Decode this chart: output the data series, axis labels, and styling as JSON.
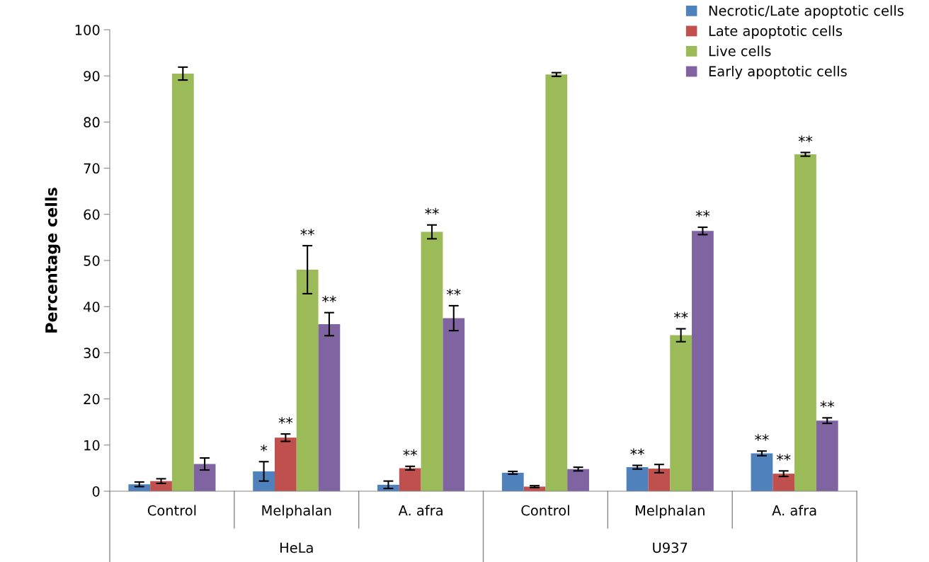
{
  "chart_data": {
    "type": "bar",
    "ylabel": "Percentage cells",
    "categories": [
      "Control",
      "Melphalan",
      "A. afra",
      "Control",
      "Melphalan",
      "A. afra"
    ],
    "annotations": [
      "HeLa",
      "U937"
    ],
    "series": [
      {
        "name": "Necrotic/Late apoptotic cells",
        "color": "#4f81bd",
        "values": [
          1.5,
          4.3,
          1.4,
          4.0,
          5.2,
          8.2
        ],
        "errors": [
          0.5,
          2.1,
          0.8,
          0.3,
          0.4,
          0.5
        ],
        "value_labels": [
          null,
          "*",
          null,
          null,
          "**",
          "**"
        ]
      },
      {
        "name": "Late apoptotic cells",
        "color": "#c0504d",
        "values": [
          2.2,
          11.6,
          5.0,
          1.0,
          4.9,
          3.8
        ],
        "errors": [
          0.5,
          0.8,
          0.4,
          0.2,
          0.9,
          0.6
        ],
        "value_labels": [
          null,
          "**",
          "**",
          null,
          null,
          "**"
        ]
      },
      {
        "name": "Live cells",
        "color": "#9bbb59",
        "values": [
          90.5,
          48.0,
          56.2,
          90.3,
          33.8,
          73.0
        ],
        "errors": [
          1.4,
          5.2,
          1.5,
          0.4,
          1.4,
          0.4
        ],
        "value_labels": [
          null,
          "**",
          "**",
          null,
          "**",
          "**"
        ]
      },
      {
        "name": "Early apoptotic cells",
        "color": "#8064a2",
        "values": [
          5.9,
          36.2,
          37.5,
          4.8,
          56.4,
          15.3
        ],
        "errors": [
          1.3,
          2.5,
          2.7,
          0.4,
          0.8,
          0.6
        ],
        "value_labels": [
          null,
          "**",
          "**",
          null,
          "**",
          "**"
        ]
      }
    ],
    "ylim": [
      0,
      100
    ],
    "yticks": [
      0,
      10,
      20,
      30,
      40,
      50,
      60,
      70,
      80,
      90,
      100
    ],
    "grid": false,
    "legend": "top right"
  }
}
